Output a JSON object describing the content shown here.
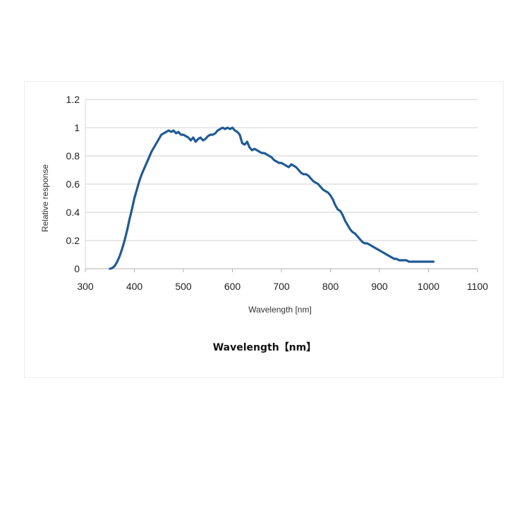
{
  "chart_data": {
    "type": "line",
    "title": "",
    "xlabel": "Wavelength [nm]",
    "ylabel": "Relative response",
    "xlim": [
      300,
      1100
    ],
    "ylim": [
      0,
      1.2
    ],
    "x_ticks": [
      "300",
      "400",
      "500",
      "600",
      "700",
      "800",
      "900",
      "1000",
      "1100"
    ],
    "y_ticks": [
      "0",
      "0.2",
      "0.4",
      "0.6",
      "0.8",
      "1",
      "1.2"
    ],
    "grid": "horizontal",
    "legend": "none",
    "series_color": "#1f5a96",
    "series": [
      {
        "x": [
          350,
          355,
          360,
          365,
          370,
          375,
          380,
          385,
          390,
          395,
          400,
          405,
          410,
          415,
          420,
          425,
          430,
          435,
          440,
          445,
          450,
          455,
          460,
          465,
          470,
          475,
          480,
          485,
          490,
          495,
          500,
          505,
          510,
          515,
          520,
          525,
          530,
          535,
          540,
          545,
          550,
          555,
          560,
          565,
          570,
          575,
          580,
          585,
          590,
          595,
          600,
          605,
          610,
          615,
          620,
          625,
          630,
          635,
          640,
          645,
          650,
          655,
          660,
          665,
          670,
          675,
          680,
          685,
          690,
          695,
          700,
          705,
          710,
          715,
          720,
          725,
          730,
          735,
          740,
          745,
          750,
          755,
          760,
          765,
          770,
          775,
          780,
          785,
          790,
          795,
          800,
          805,
          810,
          815,
          820,
          825,
          830,
          835,
          840,
          845,
          850,
          855,
          860,
          865,
          870,
          875,
          880,
          885,
          890,
          895,
          900,
          905,
          910,
          915,
          920,
          925,
          930,
          935,
          940,
          945,
          950,
          955,
          960,
          965,
          970,
          975,
          980,
          985,
          990,
          995,
          1000,
          1005,
          1010
        ],
        "values": [
          0.0,
          0.005,
          0.02,
          0.05,
          0.09,
          0.14,
          0.2,
          0.27,
          0.35,
          0.42,
          0.5,
          0.56,
          0.62,
          0.67,
          0.71,
          0.75,
          0.79,
          0.83,
          0.86,
          0.89,
          0.92,
          0.95,
          0.96,
          0.97,
          0.98,
          0.97,
          0.98,
          0.96,
          0.97,
          0.95,
          0.95,
          0.94,
          0.93,
          0.91,
          0.93,
          0.9,
          0.92,
          0.93,
          0.91,
          0.92,
          0.94,
          0.95,
          0.95,
          0.96,
          0.98,
          0.99,
          1.0,
          0.99,
          1.0,
          0.99,
          1.0,
          0.98,
          0.97,
          0.95,
          0.89,
          0.88,
          0.9,
          0.86,
          0.84,
          0.85,
          0.84,
          0.83,
          0.82,
          0.82,
          0.81,
          0.8,
          0.79,
          0.77,
          0.76,
          0.75,
          0.75,
          0.74,
          0.73,
          0.72,
          0.74,
          0.73,
          0.72,
          0.7,
          0.68,
          0.67,
          0.67,
          0.66,
          0.64,
          0.62,
          0.61,
          0.6,
          0.58,
          0.56,
          0.55,
          0.54,
          0.52,
          0.49,
          0.45,
          0.42,
          0.41,
          0.38,
          0.34,
          0.31,
          0.28,
          0.26,
          0.25,
          0.23,
          0.21,
          0.19,
          0.18,
          0.18,
          0.17,
          0.16,
          0.15,
          0.14,
          0.13,
          0.12,
          0.11,
          0.1,
          0.09,
          0.08,
          0.07,
          0.07,
          0.06,
          0.06,
          0.06,
          0.06,
          0.05,
          0.05,
          0.05,
          0.05,
          0.05,
          0.05,
          0.05,
          0.05,
          0.05,
          0.05,
          0.05
        ]
      }
    ]
  },
  "caption": "Wavelength【nm】"
}
